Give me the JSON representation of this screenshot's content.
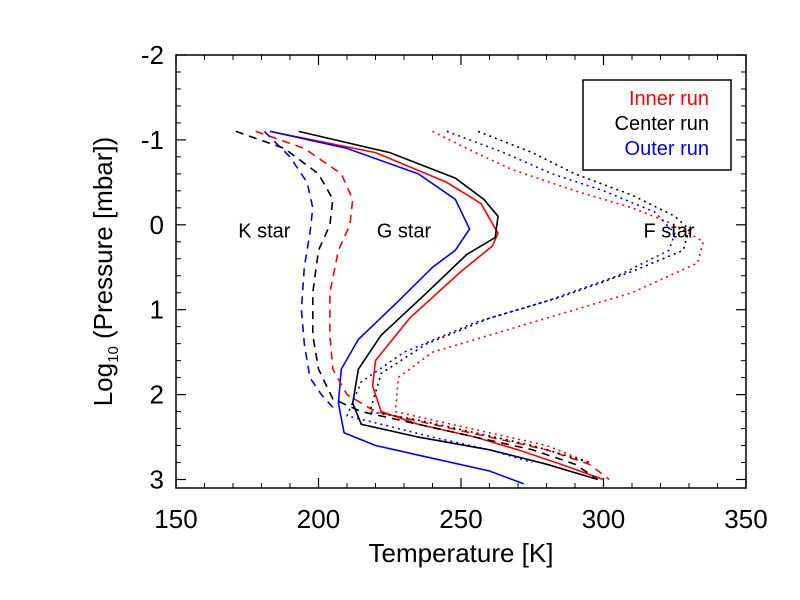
{
  "chart_data": {
    "type": "line",
    "xlabel": "Temperature [K]",
    "ylabel_prefix": "Log",
    "ylabel_subscript": "10",
    "ylabel_suffix": " (Pressure [mbar])",
    "xlim": [
      150,
      350
    ],
    "ylim": [
      -2,
      3.1
    ],
    "y_inverted": true,
    "x_ticks": [
      150,
      200,
      250,
      300,
      350
    ],
    "y_ticks": [
      -2,
      -1,
      0,
      1,
      2,
      3
    ],
    "grid": false,
    "legend": {
      "placement": "top-right",
      "entries": [
        {
          "label": "Inner run",
          "color": "#ff0000"
        },
        {
          "label": "Center run",
          "color": "#000000"
        },
        {
          "label": "Outer run",
          "color": "#0000ff"
        }
      ]
    },
    "annotations": [
      {
        "text": "K star",
        "x": 181,
        "y": 0.15
      },
      {
        "text": "G star",
        "x": 230,
        "y": 0.15
      },
      {
        "text": "F star",
        "x": 323,
        "y": 0.15
      }
    ],
    "series": [
      {
        "star": "G",
        "run": "Inner",
        "color": "#ff0000",
        "dash": "solid",
        "points": [
          [
            183,
            -1.1
          ],
          [
            220,
            -0.85
          ],
          [
            245,
            -0.5
          ],
          [
            257,
            -0.25
          ],
          [
            263,
            0.1
          ],
          [
            261,
            0.25
          ],
          [
            250,
            0.55
          ],
          [
            232,
            1.1
          ],
          [
            220,
            1.6
          ],
          [
            219,
            1.9
          ],
          [
            222,
            2.2
          ],
          [
            235,
            2.35
          ],
          [
            255,
            2.5
          ],
          [
            270,
            2.65
          ],
          [
            285,
            2.82
          ],
          [
            300,
            3.0
          ]
        ]
      },
      {
        "star": "G",
        "run": "Center",
        "color": "#000000",
        "dash": "solid",
        "points": [
          [
            193,
            -1.1
          ],
          [
            225,
            -0.85
          ],
          [
            248,
            -0.55
          ],
          [
            258,
            -0.3
          ],
          [
            263,
            -0.1
          ],
          [
            262,
            0.15
          ],
          [
            252,
            0.35
          ],
          [
            238,
            0.8
          ],
          [
            222,
            1.3
          ],
          [
            214,
            1.7
          ],
          [
            212,
            2.1
          ],
          [
            215,
            2.35
          ],
          [
            235,
            2.5
          ],
          [
            260,
            2.65
          ],
          [
            280,
            2.82
          ],
          [
            298,
            3.0
          ]
        ]
      },
      {
        "star": "G",
        "run": "Outer",
        "color": "#0000ff",
        "dash": "solid",
        "points": [
          [
            183,
            -1.1
          ],
          [
            210,
            -0.9
          ],
          [
            235,
            -0.6
          ],
          [
            248,
            -0.3
          ],
          [
            253,
            0.05
          ],
          [
            248,
            0.3
          ],
          [
            240,
            0.5
          ],
          [
            228,
            0.9
          ],
          [
            214,
            1.35
          ],
          [
            208,
            1.7
          ],
          [
            207,
            2.1
          ],
          [
            209,
            2.45
          ],
          [
            220,
            2.6
          ],
          [
            240,
            2.75
          ],
          [
            260,
            2.9
          ],
          [
            272,
            3.05
          ]
        ]
      },
      {
        "star": "K",
        "run": "Inner",
        "color": "#ff0000",
        "dash": "dashed",
        "points": [
          [
            178,
            -1.1
          ],
          [
            195,
            -0.9
          ],
          [
            208,
            -0.6
          ],
          [
            212,
            -0.3
          ],
          [
            211,
            0
          ],
          [
            207,
            0.3
          ],
          [
            204,
            0.8
          ],
          [
            204,
            1.3
          ],
          [
            205,
            1.7
          ],
          [
            210,
            2.0
          ],
          [
            220,
            2.2
          ],
          [
            240,
            2.35
          ],
          [
            260,
            2.5
          ],
          [
            280,
            2.65
          ],
          [
            295,
            2.82
          ],
          [
            302,
            3.0
          ]
        ]
      },
      {
        "star": "K",
        "run": "Center",
        "color": "#000000",
        "dash": "dashed",
        "points": [
          [
            171,
            -1.1
          ],
          [
            188,
            -0.9
          ],
          [
            200,
            -0.6
          ],
          [
            205,
            -0.3
          ],
          [
            204,
            0
          ],
          [
            200,
            0.3
          ],
          [
            198,
            0.8
          ],
          [
            198,
            1.3
          ],
          [
            200,
            1.7
          ],
          [
            205,
            2.05
          ],
          [
            215,
            2.2
          ],
          [
            235,
            2.35
          ],
          [
            255,
            2.5
          ],
          [
            275,
            2.65
          ],
          [
            290,
            2.82
          ],
          [
            298,
            3.0
          ]
        ]
      },
      {
        "star": "K",
        "run": "Outer",
        "color": "#0000ff",
        "dash": "dashed",
        "points": [
          [
            181,
            -1.1
          ],
          [
            190,
            -0.8
          ],
          [
            196,
            -0.5
          ],
          [
            198,
            -0.2
          ],
          [
            197,
            0.1
          ],
          [
            195,
            0.5
          ],
          [
            194,
            1.0
          ],
          [
            195,
            1.4
          ],
          [
            197,
            1.8
          ],
          [
            201,
            2.0
          ],
          [
            205,
            2.15
          ]
        ]
      },
      {
        "star": "F",
        "run": "Inner",
        "color": "#ff0000",
        "dash": "dotted",
        "points": [
          [
            240,
            -1.1
          ],
          [
            255,
            -0.85
          ],
          [
            268,
            -0.65
          ],
          [
            290,
            -0.4
          ],
          [
            310,
            -0.2
          ],
          [
            325,
            0
          ],
          [
            335,
            0.2
          ],
          [
            333,
            0.45
          ],
          [
            310,
            0.8
          ],
          [
            280,
            1.1
          ],
          [
            260,
            1.3
          ],
          [
            240,
            1.5
          ],
          [
            228,
            1.8
          ],
          [
            227,
            2.2
          ],
          [
            240,
            2.3
          ],
          [
            260,
            2.45
          ],
          [
            280,
            2.6
          ],
          [
            295,
            2.8
          ]
        ]
      },
      {
        "star": "F",
        "run": "Center",
        "color": "#000000",
        "dash": "dotted",
        "points": [
          [
            256,
            -1.1
          ],
          [
            275,
            -0.85
          ],
          [
            290,
            -0.6
          ],
          [
            310,
            -0.35
          ],
          [
            325,
            -0.1
          ],
          [
            330,
            0.05
          ],
          [
            328,
            0.3
          ],
          [
            310,
            0.55
          ],
          [
            285,
            0.85
          ],
          [
            260,
            1.1
          ],
          [
            238,
            1.4
          ],
          [
            222,
            1.75
          ],
          [
            218,
            2.2
          ],
          [
            235,
            2.3
          ],
          [
            255,
            2.45
          ],
          [
            275,
            2.6
          ],
          [
            295,
            2.8
          ]
        ]
      },
      {
        "star": "F",
        "run": "Outer",
        "color": "#0000ff",
        "dash": "dotted",
        "points": [
          [
            245,
            -1.1
          ],
          [
            265,
            -0.85
          ],
          [
            282,
            -0.6
          ],
          [
            300,
            -0.4
          ],
          [
            318,
            -0.15
          ],
          [
            325,
            0.1
          ],
          [
            323,
            0.3
          ],
          [
            305,
            0.6
          ],
          [
            280,
            0.9
          ],
          [
            255,
            1.15
          ],
          [
            230,
            1.5
          ],
          [
            215,
            1.85
          ],
          [
            210,
            2.25
          ],
          [
            222,
            2.35
          ],
          [
            240,
            2.5
          ],
          [
            260,
            2.65
          ],
          [
            275,
            2.8
          ]
        ]
      }
    ]
  }
}
